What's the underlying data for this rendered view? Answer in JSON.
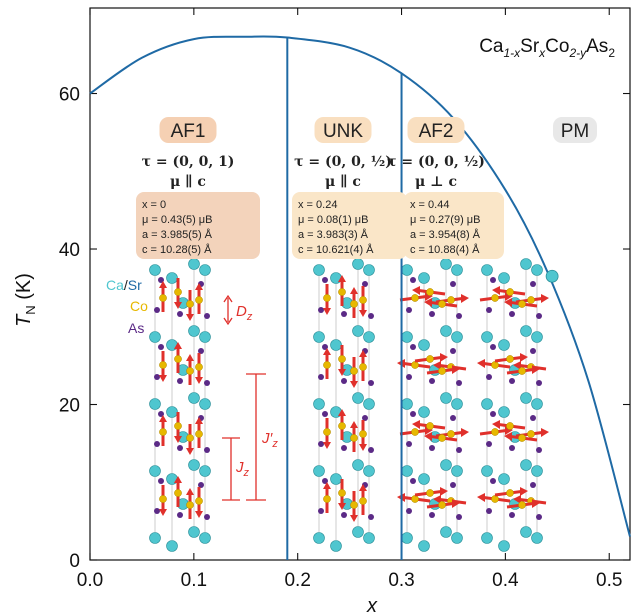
{
  "chart_data": {
    "type": "line",
    "title": "Ca1-xSrxCo2-yAs2",
    "title_parts": [
      "Ca",
      "1-x",
      "Sr",
      "x",
      "Co",
      "2-y",
      "As",
      "2"
    ],
    "xlabel": "x",
    "ylabel": "T",
    "ylabel_sub": "N",
    "ylabel_unit": "(K)",
    "xlim": [
      0.0,
      0.52
    ],
    "ylim": [
      0,
      71
    ],
    "xticks": [
      "0.0",
      "0.1",
      "0.2",
      "0.3",
      "0.4",
      "0.5"
    ],
    "xtick_values": [
      0.0,
      0.1,
      0.2,
      0.3,
      0.4,
      0.5
    ],
    "yticks": [
      "0",
      "20",
      "40",
      "60"
    ],
    "ytick_values": [
      0,
      20,
      40,
      60
    ],
    "series": [
      {
        "color": "#1f6aa5",
        "x": [
          0.0,
          0.05,
          0.1,
          0.15,
          0.19,
          0.25,
          0.3,
          0.35,
          0.4,
          0.44,
          0.48,
          0.52
        ],
        "y": [
          60.0,
          64.6,
          67.0,
          67.3,
          67.2,
          65.9,
          62.6,
          56.8,
          47.6,
          37.2,
          23.0,
          3.0
        ]
      }
    ],
    "vertical_lines_x": [
      0.19,
      0.3
    ],
    "marker": {
      "x": 0.445,
      "y": 36.5,
      "color": "#4fc6cf"
    },
    "phases": [
      {
        "name": "AF1",
        "pill_color": "#f5d0b3",
        "tau": [
          "τ = (0, 0, 1)",
          "μ ∥ c"
        ],
        "box_color": "#f3d3bb",
        "box": [
          "x = 0",
          "μ = 0.43(5) μB",
          "a = 3.985(5) Å",
          "c = 10.28(5) Å"
        ]
      },
      {
        "name": "UNK",
        "pill_color": "#f9dfc0",
        "tau": [
          "τ = (0, 0, ½)",
          "μ ∥ c"
        ],
        "box_color": "#fae6c8",
        "box": [
          "x = 0.24",
          "μ = 0.08(1) μB",
          "a = 3.983(3) Å",
          "c = 10.621(4) Å"
        ]
      },
      {
        "name": "AF2",
        "pill_color": "#f9dfc0",
        "tau": [
          "τ = (0, 0, ½)",
          "μ ⊥ c"
        ],
        "box_color": "#fae6c8",
        "box": [
          "x = 0.44",
          "μ = 0.27(9) μB",
          "a = 3.954(8) Å",
          "c = 10.88(4) Å"
        ]
      },
      {
        "name": "PM",
        "pill_color": "#e8e8e8"
      }
    ],
    "legend_labels": {
      "ca": "Ca",
      "slash": "/",
      "sr": "Sr",
      "co": "Co",
      "as": "As"
    },
    "legend_colors": {
      "ca": "#4fc6cf",
      "sr": "#1f6aa5",
      "co": "#e7b800",
      "as": "#5b2a86"
    },
    "annotations": {
      "dz": "D",
      "dz_sub": "z",
      "jz": "J",
      "jz_sub": "z",
      "jzp": "J′",
      "jzp_sub": "z"
    },
    "annotation_color": "#e0302b"
  }
}
